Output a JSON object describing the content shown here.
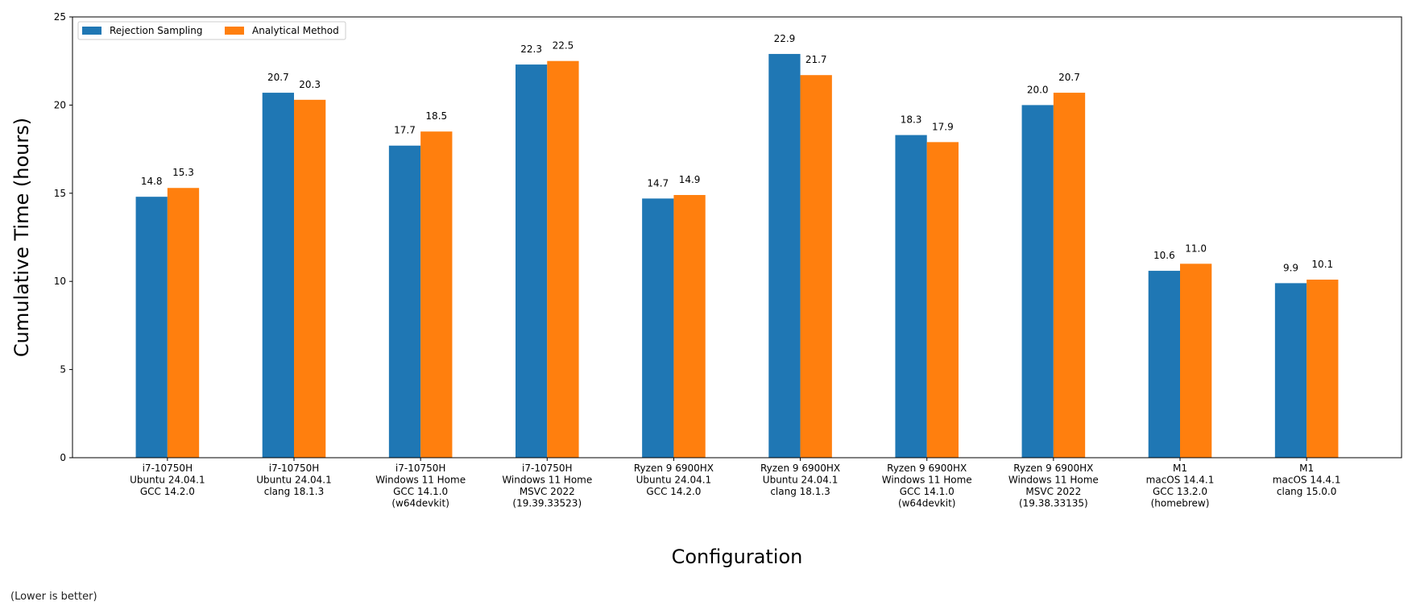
{
  "chart_data": {
    "type": "bar",
    "categories": [
      [
        "i7-10750H",
        "Ubuntu 24.04.1",
        "GCC 14.2.0"
      ],
      [
        "i7-10750H",
        "Ubuntu 24.04.1",
        "clang 18.1.3"
      ],
      [
        "i7-10750H",
        "Windows 11 Home",
        "GCC 14.1.0",
        "(w64devkit)"
      ],
      [
        "i7-10750H",
        "Windows 11 Home",
        "MSVC 2022",
        "(19.39.33523)"
      ],
      [
        "Ryzen 9 6900HX",
        "Ubuntu 24.04.1",
        "GCC 14.2.0"
      ],
      [
        "Ryzen 9 6900HX",
        "Ubuntu 24.04.1",
        "clang 18.1.3"
      ],
      [
        "Ryzen 9 6900HX",
        "Windows 11 Home",
        "GCC 14.1.0",
        "(w64devkit)"
      ],
      [
        "Ryzen 9 6900HX",
        "Windows 11 Home",
        "MSVC 2022",
        "(19.38.33135)"
      ],
      [
        "M1",
        "macOS 14.4.1",
        "GCC 13.2.0",
        "(homebrew)"
      ],
      [
        "M1",
        "macOS 14.4.1",
        "clang 15.0.0"
      ]
    ],
    "series": [
      {
        "name": "Rejection Sampling",
        "color": "#1f77b4",
        "values": [
          14.8,
          20.7,
          17.7,
          22.3,
          14.7,
          22.9,
          18.3,
          20.0,
          10.6,
          9.9
        ],
        "labels": [
          "14.8",
          "20.7",
          "17.7",
          "22.3",
          "14.7",
          "22.9",
          "18.3",
          "20.0",
          "10.6",
          "9.9"
        ]
      },
      {
        "name": "Analytical Method",
        "color": "#ff7f0e",
        "values": [
          15.3,
          20.3,
          18.5,
          22.5,
          14.9,
          21.7,
          17.9,
          20.7,
          11.0,
          10.1
        ],
        "labels": [
          "15.3",
          "20.3",
          "18.5",
          "22.5",
          "14.9",
          "21.7",
          "17.9",
          "20.7",
          "11.0",
          "10.1"
        ]
      }
    ],
    "xlabel": "Configuration",
    "ylabel": "Cumulative Time (hours)",
    "ylim": [
      0,
      25
    ],
    "yticks": [
      0,
      5,
      10,
      15,
      20,
      25
    ],
    "grid": false,
    "legend_position": "top-left",
    "note": "(Lower is better)"
  }
}
